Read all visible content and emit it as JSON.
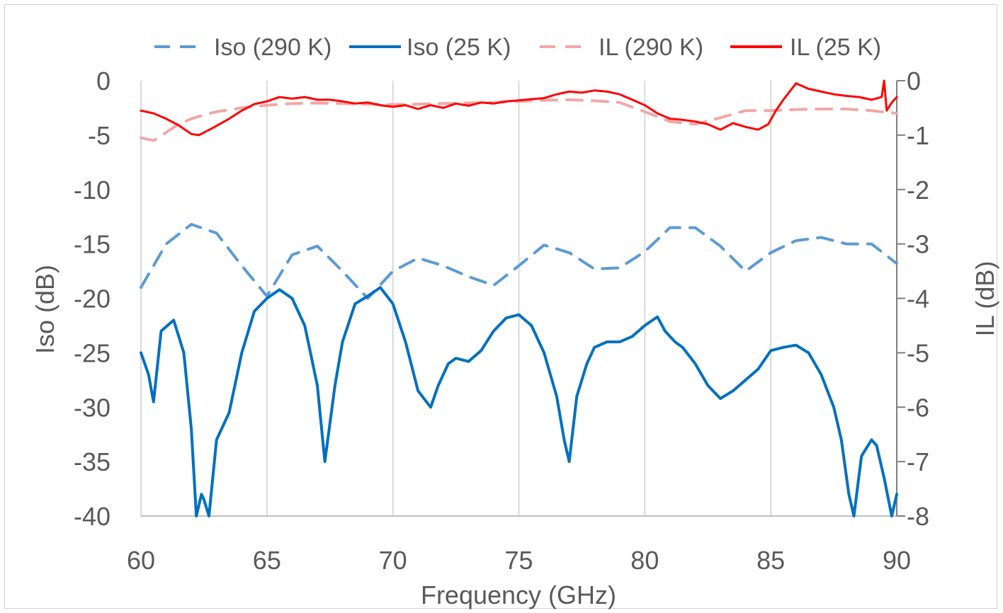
{
  "chart_data": {
    "type": "line",
    "xlabel": "Frequency (GHz)",
    "ylabel_left": "Iso (dB)",
    "ylabel_right": "IL (dB)",
    "xlim": [
      60,
      90
    ],
    "ylim_left": [
      -40,
      0
    ],
    "ylim_right": [
      -8,
      0
    ],
    "x_ticks": [
      "60",
      "65",
      "70",
      "75",
      "80",
      "85",
      "90"
    ],
    "y_ticks_left": [
      "0",
      "-5",
      "-10",
      "-15",
      "-20",
      "-25",
      "-30",
      "-35",
      "-40"
    ],
    "y_ticks_right": [
      "0",
      "-1",
      "-2",
      "-3",
      "-4",
      "-5",
      "-6",
      "-7",
      "-8"
    ],
    "grid": "vertical",
    "legend_position": "top",
    "series": [
      {
        "name": "Iso (290 K)",
        "axis": "left",
        "color": "#5b9bd5",
        "dash": true,
        "x": [
          60,
          61,
          62,
          63,
          64,
          65,
          66,
          67,
          68,
          69,
          70,
          71,
          72,
          73,
          74,
          75,
          76,
          77,
          78,
          79,
          80,
          81,
          82,
          83,
          84,
          85,
          86,
          87,
          88,
          89,
          90
        ],
        "y": [
          -19,
          -15,
          -13.2,
          -14,
          -17,
          -19.8,
          -16,
          -15.2,
          -17.5,
          -20,
          -17.5,
          -16.3,
          -17,
          -18,
          -18.8,
          -17,
          -15.1,
          -15.8,
          -17.3,
          -17.2,
          -15.7,
          -13.5,
          -13.5,
          -15.2,
          -17.5,
          -15.8,
          -14.7,
          -14.4,
          -15,
          -15,
          -16.8
        ]
      },
      {
        "name": "Iso (25 K)",
        "axis": "left",
        "color": "#0070c0",
        "dash": false,
        "x": [
          60,
          60.3,
          60.5,
          60.8,
          61.3,
          61.7,
          62,
          62.2,
          62.4,
          62.5,
          62.7,
          63,
          63.5,
          64,
          64.5,
          65,
          65.5,
          66,
          66.5,
          67,
          67.3,
          67.7,
          68,
          68.5,
          69,
          69.5,
          70,
          70.5,
          71,
          71.5,
          71.8,
          72.2,
          72.5,
          73,
          73.5,
          74,
          74.5,
          75,
          75.5,
          76,
          76.5,
          76.8,
          77,
          77.3,
          77.7,
          78,
          78.5,
          79,
          79.5,
          80,
          80.5,
          80.8,
          81.2,
          81.5,
          82,
          82.5,
          83,
          83.5,
          84,
          84.5,
          85,
          85.5,
          86,
          86.5,
          87,
          87.5,
          87.8,
          88.1,
          88.3,
          88.6,
          89,
          89.2,
          89.5,
          89.8,
          90
        ],
        "y": [
          -25,
          -27,
          -29.5,
          -23,
          -22,
          -25,
          -32,
          -40,
          -38,
          -38.5,
          -40,
          -33,
          -30.5,
          -25,
          -21.2,
          -20,
          -19.2,
          -20,
          -22.5,
          -28,
          -35,
          -28,
          -24,
          -20.5,
          -19.8,
          -19,
          -20.5,
          -24,
          -28.5,
          -30,
          -28,
          -26,
          -25.5,
          -25.8,
          -24.8,
          -23,
          -21.8,
          -21.5,
          -22.5,
          -25,
          -29,
          -33,
          -35,
          -29,
          -26,
          -24.5,
          -24,
          -24,
          -23.5,
          -22.5,
          -21.7,
          -23,
          -24,
          -24.5,
          -26,
          -28,
          -29.2,
          -28.5,
          -27.5,
          -26.5,
          -24.8,
          -24.5,
          -24.3,
          -25,
          -27,
          -30,
          -33,
          -38,
          -40,
          -34.5,
          -33,
          -33.5,
          -36.5,
          -40,
          -38
        ]
      },
      {
        "name": "IL (290 K)",
        "axis": "right",
        "color": "#f4a6a6",
        "dash": true,
        "x": [
          60,
          60.5,
          61,
          61.5,
          62,
          62.5,
          63,
          64,
          65,
          66,
          67,
          68,
          69,
          70,
          71,
          72,
          73,
          74,
          75,
          76,
          77,
          78,
          79,
          80,
          81,
          82,
          83,
          84,
          85,
          86,
          87,
          88,
          89,
          90
        ],
        "y": [
          -1.05,
          -1.1,
          -0.95,
          -0.8,
          -0.7,
          -0.63,
          -0.57,
          -0.5,
          -0.45,
          -0.42,
          -0.41,
          -0.42,
          -0.43,
          -0.44,
          -0.43,
          -0.42,
          -0.41,
          -0.4,
          -0.38,
          -0.36,
          -0.35,
          -0.37,
          -0.4,
          -0.57,
          -0.75,
          -0.8,
          -0.68,
          -0.55,
          -0.55,
          -0.53,
          -0.52,
          -0.52,
          -0.55,
          -0.6
        ]
      },
      {
        "name": "IL (25 K)",
        "axis": "right",
        "color": "#ff0000",
        "dash": false,
        "x": [
          60,
          60.5,
          61,
          61.5,
          62,
          62.3,
          62.8,
          63.5,
          64,
          64.5,
          65,
          65.5,
          66,
          66.5,
          67,
          67.5,
          68,
          68.5,
          69,
          69.5,
          70,
          70.5,
          71,
          71.5,
          72,
          72.5,
          73,
          73.5,
          74,
          74.5,
          75,
          75.5,
          76,
          76.5,
          77,
          77.5,
          78,
          78.5,
          79,
          79.5,
          80,
          80.5,
          81,
          81.5,
          82,
          82.5,
          83,
          83.5,
          84,
          84.5,
          84.9,
          85.2,
          85.5,
          86,
          86.5,
          87,
          87.5,
          88,
          88.5,
          89,
          89.4,
          89.5,
          89.6,
          89.8,
          90
        ],
        "y": [
          -0.55,
          -0.6,
          -0.7,
          -0.82,
          -0.98,
          -1.0,
          -0.88,
          -0.7,
          -0.55,
          -0.43,
          -0.38,
          -0.3,
          -0.33,
          -0.3,
          -0.35,
          -0.35,
          -0.38,
          -0.42,
          -0.4,
          -0.45,
          -0.48,
          -0.45,
          -0.52,
          -0.45,
          -0.5,
          -0.42,
          -0.46,
          -0.4,
          -0.42,
          -0.38,
          -0.36,
          -0.34,
          -0.32,
          -0.25,
          -0.2,
          -0.22,
          -0.18,
          -0.2,
          -0.25,
          -0.35,
          -0.45,
          -0.6,
          -0.7,
          -0.72,
          -0.75,
          -0.8,
          -0.9,
          -0.78,
          -0.85,
          -0.9,
          -0.8,
          -0.55,
          -0.35,
          -0.05,
          -0.15,
          -0.2,
          -0.25,
          -0.28,
          -0.3,
          -0.35,
          -0.3,
          0,
          -0.55,
          -0.4,
          -0.3
        ]
      }
    ]
  }
}
